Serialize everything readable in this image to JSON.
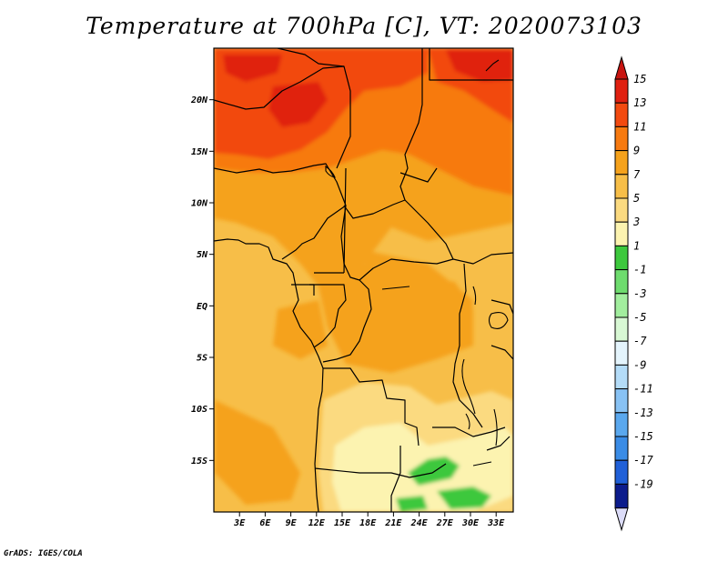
{
  "title": "Temperature at 700hPa [C], VT: 2020073103",
  "credit": "GrADS: IGES/COLA",
  "map": {
    "lat_ticks": [
      {
        "lat": 20,
        "label": "20N"
      },
      {
        "lat": 15,
        "label": "15N"
      },
      {
        "lat": 10,
        "label": "10N"
      },
      {
        "lat": 5,
        "label": "5N"
      },
      {
        "lat": 0,
        "label": "EQ"
      },
      {
        "lat": -5,
        "label": "5S"
      },
      {
        "lat": -10,
        "label": "10S"
      },
      {
        "lat": -15,
        "label": "15S"
      }
    ],
    "lon_ticks": [
      {
        "lon": 3,
        "label": "3E"
      },
      {
        "lon": 6,
        "label": "6E"
      },
      {
        "lon": 9,
        "label": "9E"
      },
      {
        "lon": 12,
        "label": "12E"
      },
      {
        "lon": 15,
        "label": "15E"
      },
      {
        "lon": 18,
        "label": "18E"
      },
      {
        "lon": 21,
        "label": "21E"
      },
      {
        "lon": 24,
        "label": "24E"
      },
      {
        "lon": 27,
        "label": "27E"
      },
      {
        "lon": 30,
        "label": "30E"
      },
      {
        "lon": 33,
        "label": "33E"
      }
    ],
    "lon_range": [
      0,
      35
    ],
    "lat_range": [
      -20,
      25
    ]
  },
  "colorbar": {
    "levels": [
      {
        "label": "15",
        "color": "#e02010"
      },
      {
        "label": "13",
        "color": "#f24a10"
      },
      {
        "label": "11",
        "color": "#f77a10"
      },
      {
        "label": "9",
        "color": "#f5a21c"
      },
      {
        "label": "7",
        "color": "#f7be48"
      },
      {
        "label": "5",
        "color": "#fbda80"
      },
      {
        "label": "3",
        "color": "#fcf3b0"
      },
      {
        "label": "1",
        "color": "#3dc83d"
      },
      {
        "label": "-1",
        "color": "#6edc6e"
      },
      {
        "label": "-3",
        "color": "#a2ee9e"
      },
      {
        "label": "-5",
        "color": "#d8f8d4"
      },
      {
        "label": "-7",
        "color": "#e4f4fc"
      },
      {
        "label": "-9",
        "color": "#b4dcf8"
      },
      {
        "label": "-11",
        "color": "#88c2f4"
      },
      {
        "label": "-13",
        "color": "#5aa8ee"
      },
      {
        "label": "-15",
        "color": "#3a8ce6"
      },
      {
        "label": "-17",
        "color": "#2060d8"
      },
      {
        "label": "-19",
        "color": "#1444c0"
      }
    ],
    "top_color": "#c81410",
    "bottom_colors": [
      "#0c1c8c",
      "#dcdcf8"
    ]
  }
}
